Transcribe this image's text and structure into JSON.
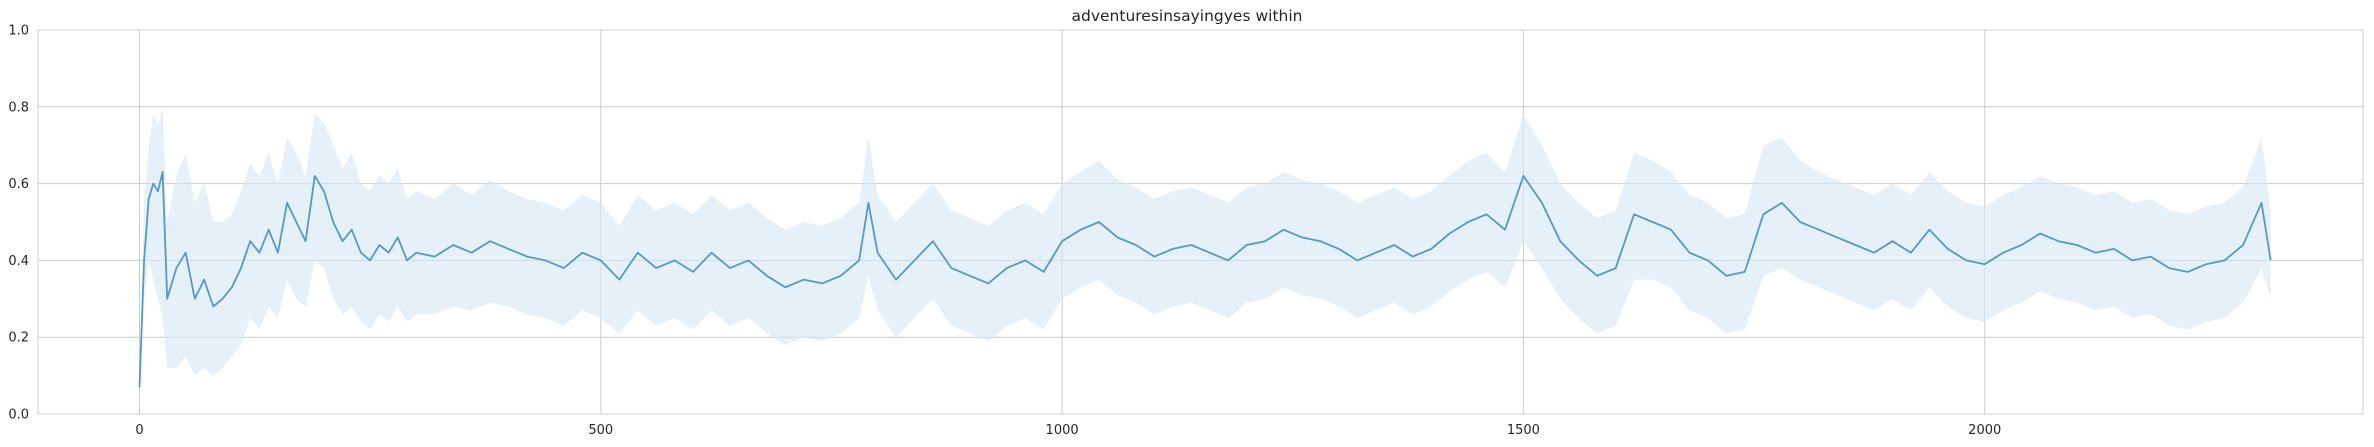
{
  "chart_data": {
    "type": "line",
    "title": "adventuresinsayingyes within",
    "xlabel": "",
    "ylabel": "",
    "xlim": [
      -110,
      2410
    ],
    "ylim": [
      0.0,
      1.0
    ],
    "x_ticks": [
      0,
      500,
      1000,
      1500,
      2000
    ],
    "x_tick_labels": [
      "0",
      "500",
      "1000",
      "1500",
      "2000"
    ],
    "y_ticks": [
      0.0,
      0.2,
      0.4,
      0.6,
      0.8,
      1.0
    ],
    "y_tick_labels": [
      "0.0",
      "0.2",
      "0.4",
      "0.6",
      "0.8",
      "1.0"
    ],
    "grid": true,
    "legend": "none",
    "colors": {
      "line": "#5599c7",
      "band": "#d6e6f4",
      "grid": "#cccccc",
      "frame": "#cccccc"
    },
    "series": [
      {
        "x": [
          0,
          5,
          10,
          15,
          20,
          25,
          30,
          40,
          50,
          60,
          70,
          80,
          90,
          100,
          110,
          120,
          130,
          140,
          150,
          160,
          170,
          180,
          190,
          200,
          210,
          220,
          230,
          240,
          250,
          260,
          270,
          280,
          290,
          300,
          320,
          340,
          360,
          380,
          400,
          420,
          440,
          460,
          480,
          500,
          520,
          540,
          560,
          580,
          600,
          620,
          640,
          660,
          680,
          700,
          720,
          740,
          760,
          780,
          790,
          800,
          820,
          840,
          860,
          880,
          900,
          920,
          940,
          960,
          980,
          1000,
          1020,
          1040,
          1060,
          1080,
          1100,
          1120,
          1140,
          1160,
          1180,
          1200,
          1220,
          1240,
          1260,
          1280,
          1300,
          1320,
          1340,
          1360,
          1380,
          1400,
          1420,
          1440,
          1460,
          1480,
          1500,
          1520,
          1540,
          1560,
          1580,
          1600,
          1620,
          1640,
          1660,
          1680,
          1700,
          1720,
          1740,
          1760,
          1780,
          1800,
          1820,
          1840,
          1860,
          1880,
          1900,
          1920,
          1940,
          1960,
          1980,
          2000,
          2020,
          2040,
          2060,
          2080,
          2100,
          2120,
          2140,
          2160,
          2180,
          2200,
          2220,
          2240,
          2260,
          2280,
          2300,
          2310
        ],
        "values": [
          0.07,
          0.4,
          0.56,
          0.6,
          0.58,
          0.63,
          0.3,
          0.38,
          0.42,
          0.3,
          0.35,
          0.28,
          0.3,
          0.33,
          0.38,
          0.45,
          0.42,
          0.48,
          0.42,
          0.55,
          0.5,
          0.45,
          0.62,
          0.58,
          0.5,
          0.45,
          0.48,
          0.42,
          0.4,
          0.44,
          0.42,
          0.46,
          0.4,
          0.42,
          0.41,
          0.44,
          0.42,
          0.45,
          0.43,
          0.41,
          0.4,
          0.38,
          0.42,
          0.4,
          0.35,
          0.42,
          0.38,
          0.4,
          0.37,
          0.42,
          0.38,
          0.4,
          0.36,
          0.33,
          0.35,
          0.34,
          0.36,
          0.4,
          0.55,
          0.42,
          0.35,
          0.4,
          0.45,
          0.38,
          0.36,
          0.34,
          0.38,
          0.4,
          0.37,
          0.45,
          0.48,
          0.5,
          0.46,
          0.44,
          0.41,
          0.43,
          0.44,
          0.42,
          0.4,
          0.44,
          0.45,
          0.48,
          0.46,
          0.45,
          0.43,
          0.4,
          0.42,
          0.44,
          0.41,
          0.43,
          0.47,
          0.5,
          0.52,
          0.48,
          0.62,
          0.55,
          0.45,
          0.4,
          0.36,
          0.38,
          0.52,
          0.5,
          0.48,
          0.42,
          0.4,
          0.36,
          0.37,
          0.52,
          0.55,
          0.5,
          0.48,
          0.46,
          0.44,
          0.42,
          0.45,
          0.42,
          0.48,
          0.43,
          0.4,
          0.39,
          0.42,
          0.44,
          0.47,
          0.45,
          0.44,
          0.42,
          0.43,
          0.4,
          0.41,
          0.38,
          0.37,
          0.39,
          0.4,
          0.44,
          0.55,
          0.4
        ],
        "band_lower": [
          0.05,
          0.3,
          0.4,
          0.35,
          0.3,
          0.25,
          0.12,
          0.12,
          0.15,
          0.1,
          0.12,
          0.1,
          0.12,
          0.15,
          0.18,
          0.25,
          0.22,
          0.28,
          0.25,
          0.35,
          0.3,
          0.28,
          0.4,
          0.38,
          0.3,
          0.26,
          0.28,
          0.24,
          0.22,
          0.26,
          0.24,
          0.28,
          0.24,
          0.26,
          0.26,
          0.28,
          0.27,
          0.29,
          0.28,
          0.26,
          0.25,
          0.23,
          0.27,
          0.25,
          0.21,
          0.27,
          0.23,
          0.25,
          0.22,
          0.27,
          0.23,
          0.25,
          0.21,
          0.18,
          0.2,
          0.19,
          0.21,
          0.25,
          0.36,
          0.27,
          0.2,
          0.25,
          0.3,
          0.23,
          0.21,
          0.19,
          0.23,
          0.25,
          0.22,
          0.3,
          0.33,
          0.35,
          0.31,
          0.29,
          0.26,
          0.28,
          0.29,
          0.27,
          0.25,
          0.29,
          0.3,
          0.33,
          0.31,
          0.3,
          0.28,
          0.25,
          0.27,
          0.29,
          0.26,
          0.28,
          0.32,
          0.35,
          0.37,
          0.33,
          0.45,
          0.38,
          0.3,
          0.25,
          0.21,
          0.23,
          0.35,
          0.35,
          0.33,
          0.27,
          0.25,
          0.21,
          0.22,
          0.36,
          0.38,
          0.35,
          0.33,
          0.31,
          0.29,
          0.27,
          0.3,
          0.27,
          0.33,
          0.28,
          0.25,
          0.24,
          0.27,
          0.29,
          0.32,
          0.3,
          0.29,
          0.27,
          0.28,
          0.25,
          0.26,
          0.23,
          0.22,
          0.24,
          0.25,
          0.29,
          0.38,
          0.3
        ],
        "band_upper": [
          0.1,
          0.55,
          0.7,
          0.78,
          0.75,
          0.8,
          0.5,
          0.62,
          0.68,
          0.55,
          0.6,
          0.5,
          0.5,
          0.52,
          0.58,
          0.65,
          0.62,
          0.68,
          0.6,
          0.72,
          0.68,
          0.62,
          0.78,
          0.76,
          0.7,
          0.64,
          0.68,
          0.6,
          0.58,
          0.62,
          0.6,
          0.64,
          0.56,
          0.58,
          0.56,
          0.6,
          0.57,
          0.61,
          0.58,
          0.56,
          0.55,
          0.53,
          0.57,
          0.55,
          0.49,
          0.57,
          0.53,
          0.55,
          0.52,
          0.57,
          0.53,
          0.55,
          0.51,
          0.48,
          0.5,
          0.49,
          0.51,
          0.55,
          0.72,
          0.57,
          0.5,
          0.55,
          0.6,
          0.53,
          0.51,
          0.49,
          0.53,
          0.55,
          0.52,
          0.6,
          0.63,
          0.66,
          0.61,
          0.59,
          0.56,
          0.58,
          0.59,
          0.57,
          0.55,
          0.59,
          0.6,
          0.63,
          0.61,
          0.6,
          0.58,
          0.55,
          0.57,
          0.59,
          0.56,
          0.58,
          0.62,
          0.66,
          0.68,
          0.63,
          0.78,
          0.7,
          0.6,
          0.55,
          0.51,
          0.53,
          0.68,
          0.66,
          0.63,
          0.57,
          0.55,
          0.51,
          0.52,
          0.7,
          0.72,
          0.66,
          0.63,
          0.61,
          0.59,
          0.57,
          0.6,
          0.57,
          0.63,
          0.58,
          0.55,
          0.54,
          0.57,
          0.59,
          0.62,
          0.6,
          0.59,
          0.57,
          0.58,
          0.55,
          0.56,
          0.53,
          0.52,
          0.54,
          0.55,
          0.59,
          0.72,
          0.52
        ]
      }
    ]
  }
}
